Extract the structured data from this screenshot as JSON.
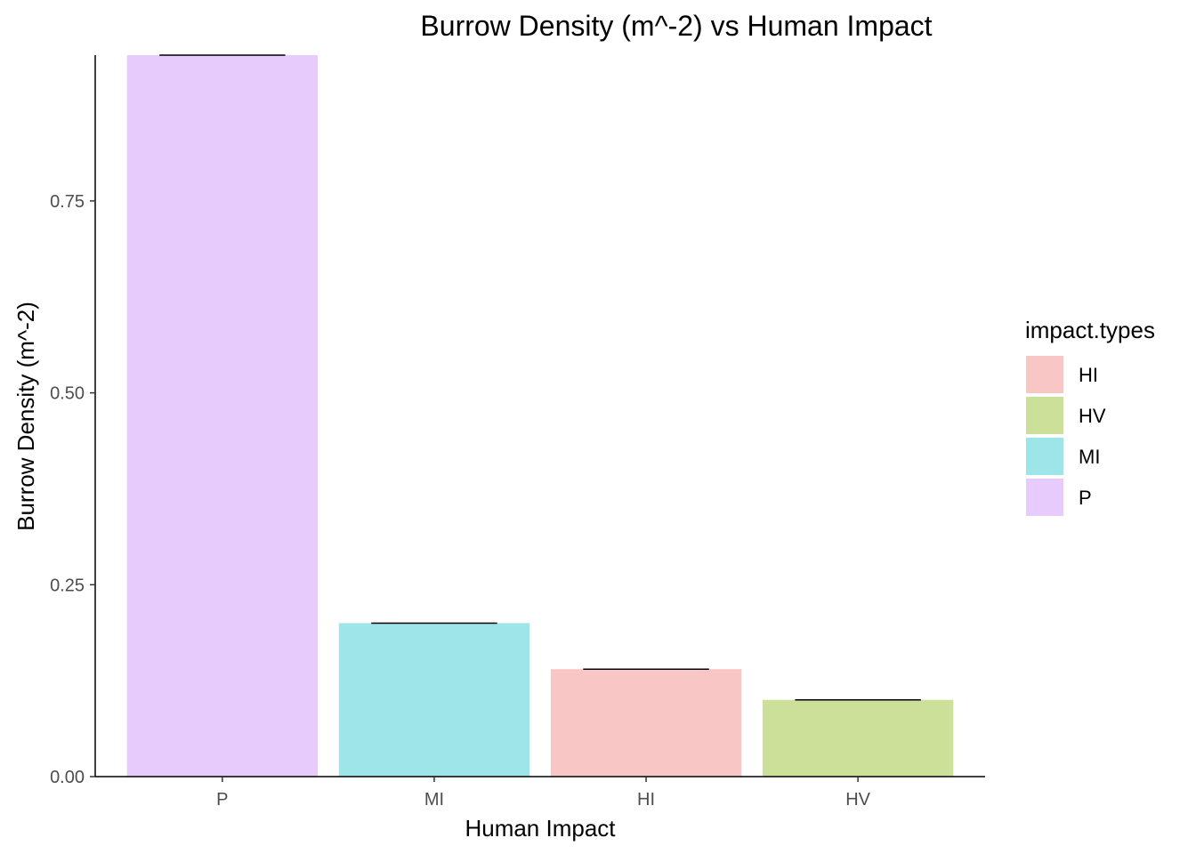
{
  "chart_data": {
    "type": "bar",
    "title": "Burrow Density (m^-2) vs Human Impact",
    "xlabel": "Human Impact",
    "ylabel": "Burrow Density (m^-2)",
    "categories": [
      "P",
      "MI",
      "HI",
      "HV"
    ],
    "values": [
      0.94,
      0.2,
      0.14,
      0.1
    ],
    "fill_keys": [
      "P",
      "MI",
      "HI",
      "HV"
    ],
    "ylim": [
      0,
      0.94
    ],
    "yticks": [
      0,
      0.25,
      0.5,
      0.75
    ],
    "ytick_labels": [
      "0.00",
      "0.25",
      "0.50",
      "0.75"
    ],
    "grid": false,
    "legend": {
      "title": "impact.types",
      "position": "right",
      "entries": [
        {
          "label": "HI",
          "color": "#f8c6c4"
        },
        {
          "label": "HV",
          "color": "#cde09a"
        },
        {
          "label": "MI",
          "color": "#9de5e8"
        },
        {
          "label": "P",
          "color": "#e8cbfd"
        }
      ]
    }
  }
}
